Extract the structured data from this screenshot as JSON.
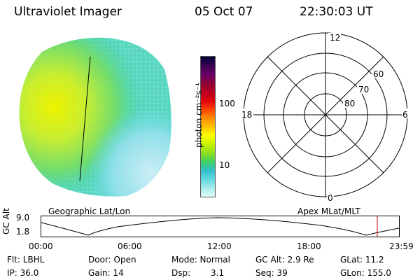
{
  "header": {
    "title": "Ultraviolet Imager",
    "date": "05 Oct 07",
    "time": "22:30:03 UT"
  },
  "colorbar": {
    "label": "photon cm⁻²s⁻¹",
    "ticks": [
      "100",
      "10"
    ],
    "colors": [
      "#000033",
      "#3a0050",
      "#6a006a",
      "#8a0038",
      "#b80020",
      "#e00010",
      "#ff4000",
      "#ff8c00",
      "#ffc000",
      "#ffff00",
      "#c8f000",
      "#8ee020",
      "#40d060",
      "#30c0c8",
      "#60d8e0",
      "#a8ecec",
      "#e0f8f8"
    ]
  },
  "polar": {
    "mlt_labels": [
      "12",
      "18",
      "6",
      "0"
    ],
    "mlat_labels": [
      "60",
      "70",
      "80"
    ]
  },
  "timeline": {
    "left_label": "Geographic Lat/Lon",
    "right_label": "Apex MLat/MLT",
    "y_axis_label": "GC Alt",
    "y_ticks": [
      "9.0",
      "1.8"
    ],
    "x_ticks": [
      "00:00",
      "06:00",
      "12:00",
      "18:00",
      "23:59"
    ],
    "marker_color": "#cc0000"
  },
  "info": {
    "flt": "Flt: LBHL",
    "door": "Door: Open",
    "mode": "Mode: Normal",
    "gc_alt": "GC Alt: 2.9 Re",
    "glat": "GLat: 11.2",
    "ip": "IP: 36.0",
    "gain": "Gain: 14",
    "dsp": "Dsp:",
    "dsp_val": "3.1",
    "seq": "Seq: 39",
    "glon": "GLon: 155.0"
  }
}
